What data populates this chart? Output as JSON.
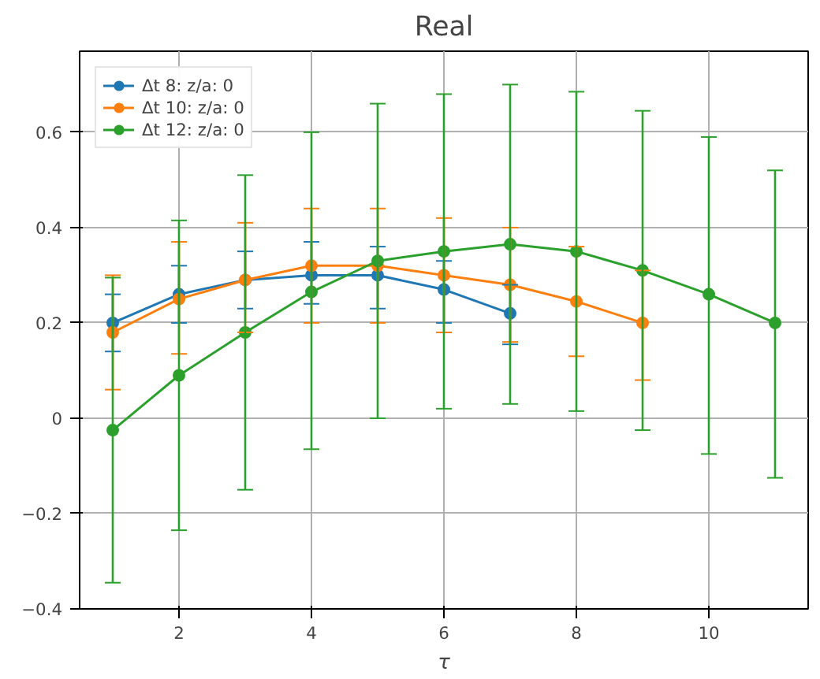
{
  "chart_data": {
    "type": "line",
    "title": "Real",
    "xlabel": "τ",
    "xlim": [
      0.5,
      11.5
    ],
    "ylim": [
      -0.4,
      0.77
    ],
    "xticks": [
      2,
      4,
      6,
      8,
      10
    ],
    "yticks": [
      -0.4,
      -0.2,
      0.0,
      0.2,
      0.4,
      0.6
    ],
    "grid": true,
    "legend": "top left",
    "marker": "circle",
    "line_style": "solid",
    "series": [
      {
        "name": "Δt 8: z/a: 0",
        "color": "#1f77b4",
        "x": [
          1,
          2,
          3,
          4,
          5,
          6,
          7
        ],
        "values": [
          0.2,
          0.26,
          0.29,
          0.3,
          0.3,
          0.27,
          0.22
        ],
        "errors": [
          [
            0.14,
            0.26
          ],
          [
            0.2,
            0.32
          ],
          [
            0.23,
            0.35
          ],
          [
            0.24,
            0.37
          ],
          [
            0.23,
            0.36
          ],
          [
            0.2,
            0.33
          ],
          [
            0.155,
            0.28
          ]
        ]
      },
      {
        "name": "Δt 10: z/a: 0",
        "color": "#ff7f0e",
        "x": [
          1,
          2,
          3,
          4,
          5,
          6,
          7,
          8,
          9
        ],
        "values": [
          0.18,
          0.25,
          0.29,
          0.32,
          0.32,
          0.3,
          0.28,
          0.245,
          0.2
        ],
        "errors": [
          [
            0.06,
            0.3
          ],
          [
            0.135,
            0.37
          ],
          [
            0.18,
            0.41
          ],
          [
            0.2,
            0.44
          ],
          [
            0.2,
            0.44
          ],
          [
            0.18,
            0.42
          ],
          [
            0.16,
            0.4
          ],
          [
            0.13,
            0.36
          ],
          [
            0.08,
            0.31
          ]
        ]
      },
      {
        "name": "Δt 12: z/a: 0",
        "color": "#2ca02c",
        "x": [
          1,
          2,
          3,
          4,
          5,
          6,
          7,
          8,
          9,
          10,
          11
        ],
        "values": [
          -0.025,
          0.09,
          0.18,
          0.265,
          0.33,
          0.35,
          0.365,
          0.35,
          0.31,
          0.26,
          0.2
        ],
        "errors": [
          [
            -0.345,
            0.295
          ],
          [
            -0.235,
            0.415
          ],
          [
            -0.15,
            0.51
          ],
          [
            -0.065,
            0.6
          ],
          [
            0.0,
            0.66
          ],
          [
            0.02,
            0.68
          ],
          [
            0.03,
            0.7
          ],
          [
            0.015,
            0.685
          ],
          [
            -0.025,
            0.645
          ],
          [
            -0.075,
            0.59
          ],
          [
            -0.125,
            0.52
          ]
        ]
      }
    ]
  }
}
